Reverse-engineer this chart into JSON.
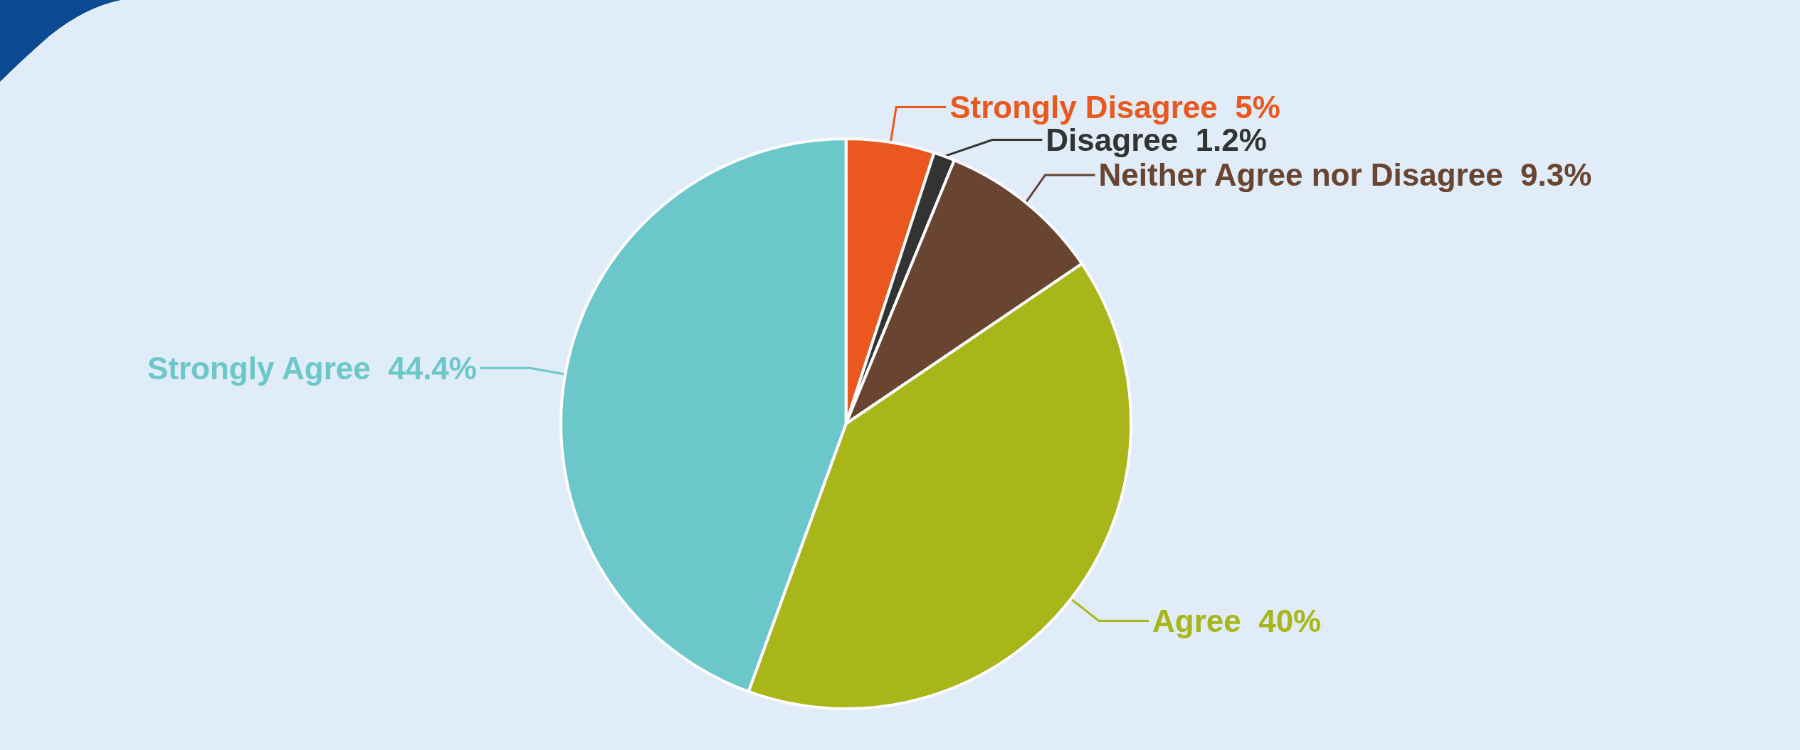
{
  "chart_data": {
    "type": "pie",
    "categories": [
      "Strongly Disagree",
      "Disagree",
      "Neither Agree nor Disagree",
      "Agree",
      "Strongly Agree"
    ],
    "values": [
      5,
      1.2,
      9.3,
      40,
      44.4
    ],
    "value_labels": [
      "5%",
      "1.2%",
      "9.3%",
      "40%",
      "44.4%"
    ],
    "colors": [
      "#eb581f",
      "#333333",
      "#694430",
      "#a9b619",
      "#6cc7cb"
    ]
  }
}
